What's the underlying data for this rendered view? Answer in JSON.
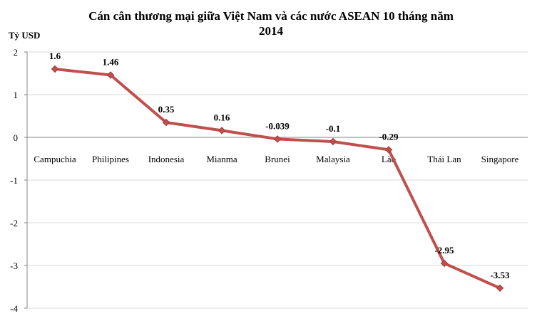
{
  "chart_data": {
    "type": "line",
    "title_line1": "Cán cân thương mại giữa Việt Nam và các nước ASEAN 10 tháng năm",
    "title_line2": "2014",
    "ylabel": "Tỷ USD",
    "xlabel": "",
    "ylim": [
      -4,
      2
    ],
    "yticks": [
      "2",
      "1",
      "0",
      "-1",
      "-2",
      "-3",
      "-4"
    ],
    "grid": true,
    "categories": [
      "Campuchia",
      "Philipines",
      "Indonesia",
      "Mianma",
      "Brunei",
      "Malaysia",
      "Lào",
      "Thái Lan",
      "Singapore"
    ],
    "series": [
      {
        "values": [
          1.6,
          1.46,
          0.35,
          0.16,
          -0.039,
          -0.1,
          -0.29,
          -2.95,
          -3.53
        ],
        "labels": [
          "1.6",
          "1.46",
          "0.35",
          "0.16",
          "-0.039",
          "-0.1",
          "-0.29",
          "-2.95",
          "-3.53"
        ],
        "color": "#c0504d"
      }
    ]
  }
}
